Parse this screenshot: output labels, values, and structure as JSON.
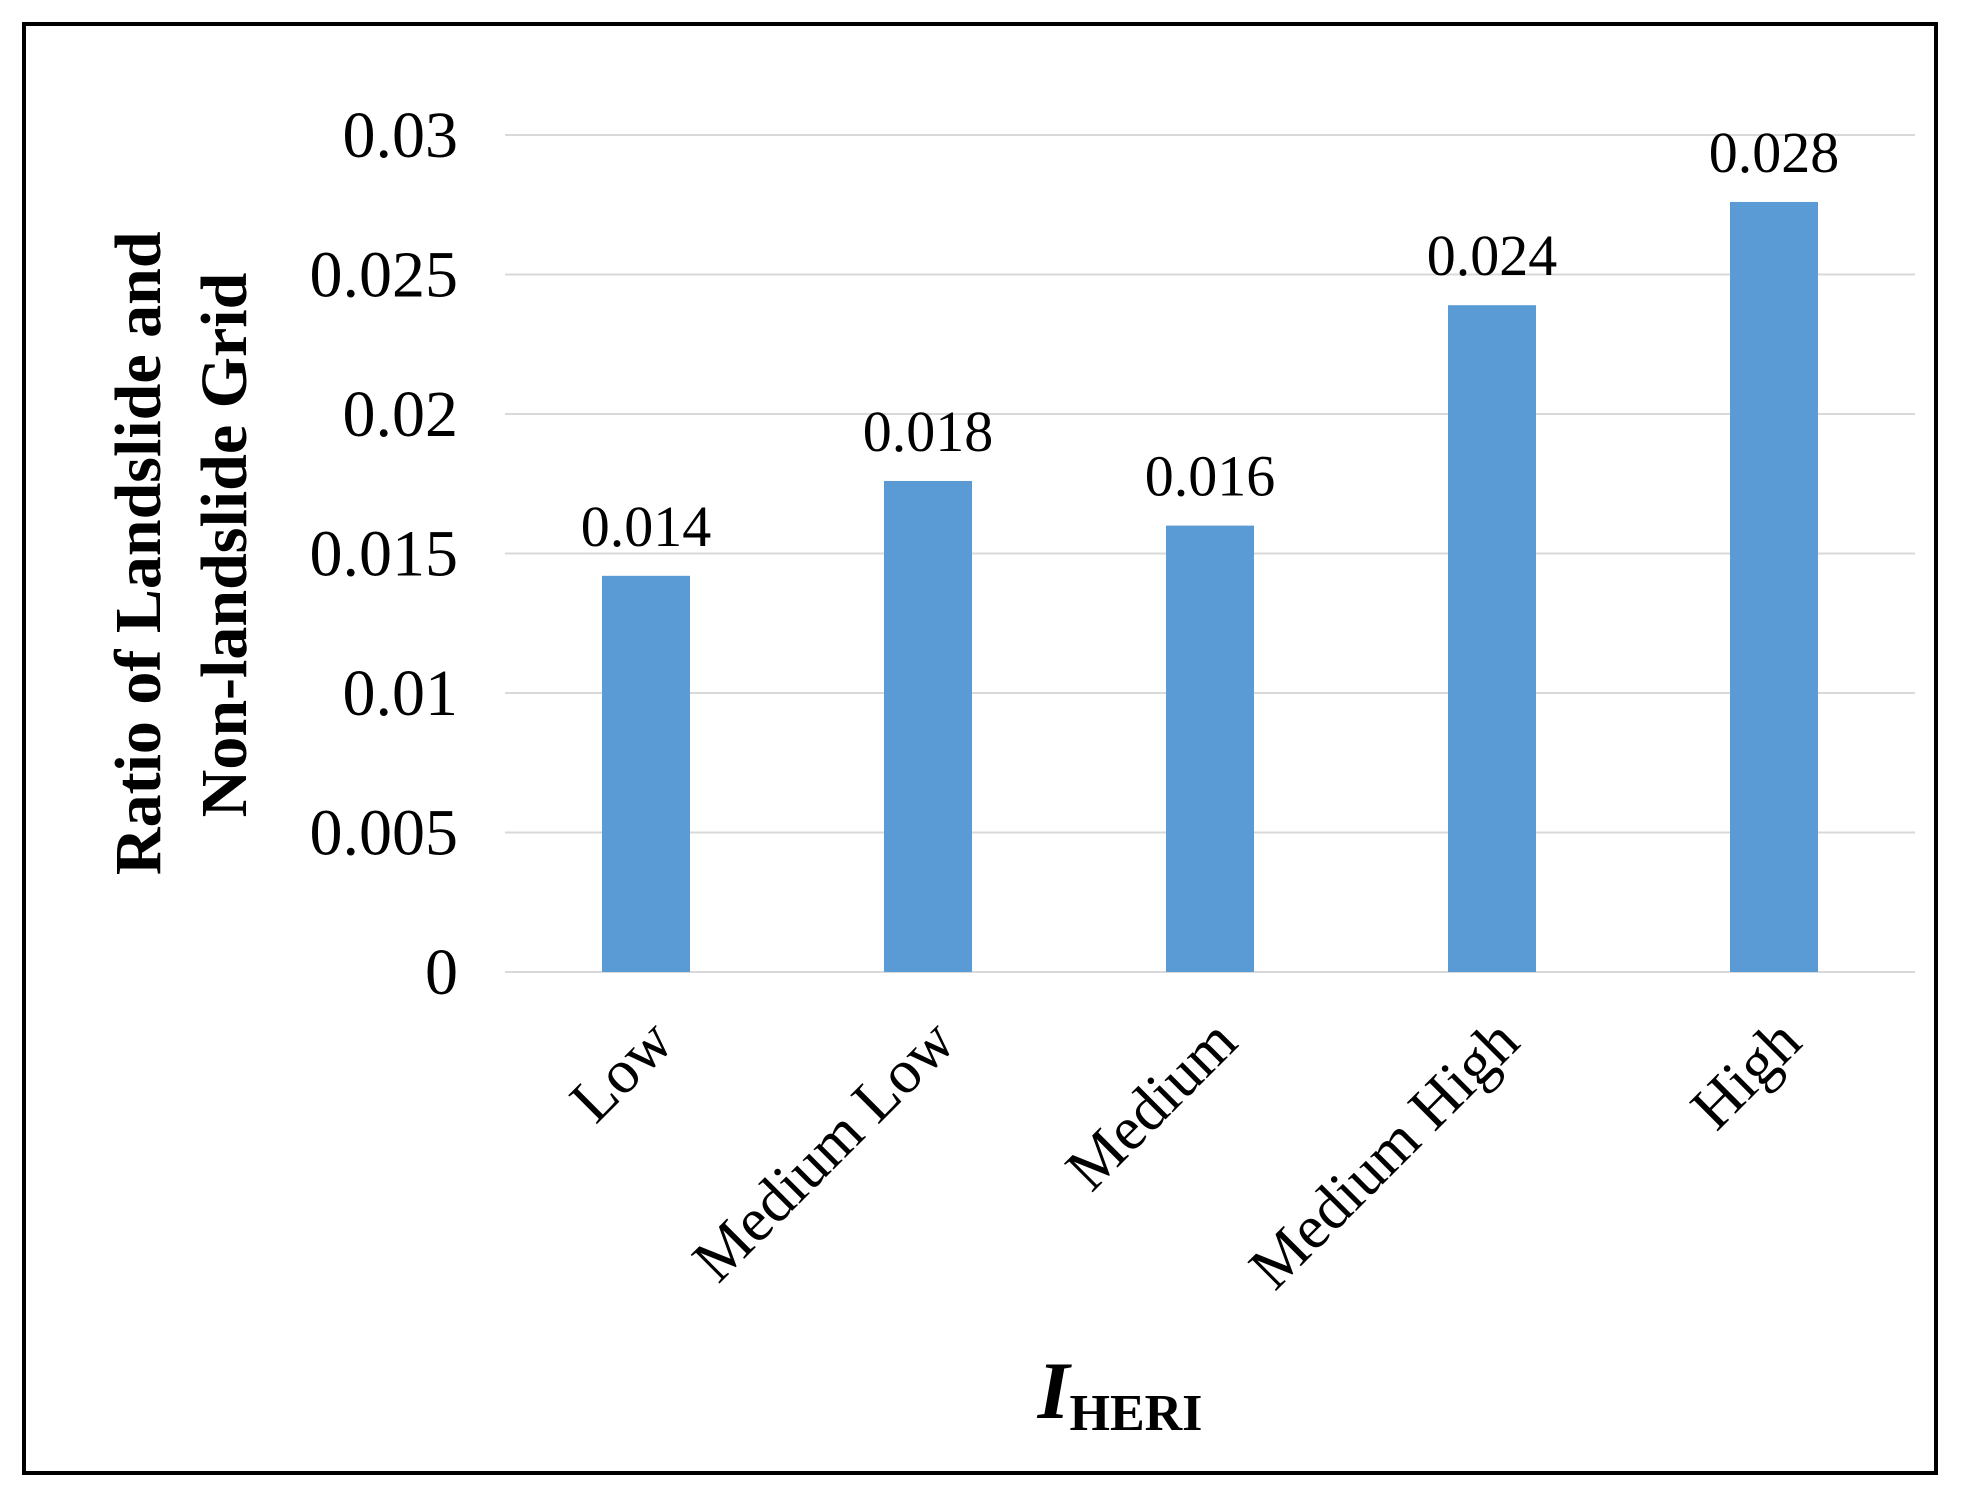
{
  "chart_data": {
    "type": "bar",
    "categories": [
      "Low",
      "Medium Low",
      "Medium",
      "Medium High",
      "High"
    ],
    "values": [
      0.0142,
      0.0176,
      0.016,
      0.0239,
      0.0276
    ],
    "data_labels": [
      "0.014",
      "0.018",
      "0.016",
      "0.024",
      "0.028"
    ],
    "ylabel_lines": [
      "Ratio of Landslide and",
      "Non-landslide Grid"
    ],
    "xlabel": {
      "main": "I",
      "subscript": "HERI"
    },
    "ylim": [
      0,
      0.03
    ],
    "yticks": [
      0,
      0.005,
      0.01,
      0.015,
      0.02,
      0.025,
      0.03
    ],
    "ytick_labels": [
      "0",
      "0.005",
      "0.01",
      "0.015",
      "0.02",
      "0.025",
      "0.03"
    ],
    "grid": true,
    "bar_color": "#5b9bd5",
    "grid_color": "#d9d9d9"
  }
}
